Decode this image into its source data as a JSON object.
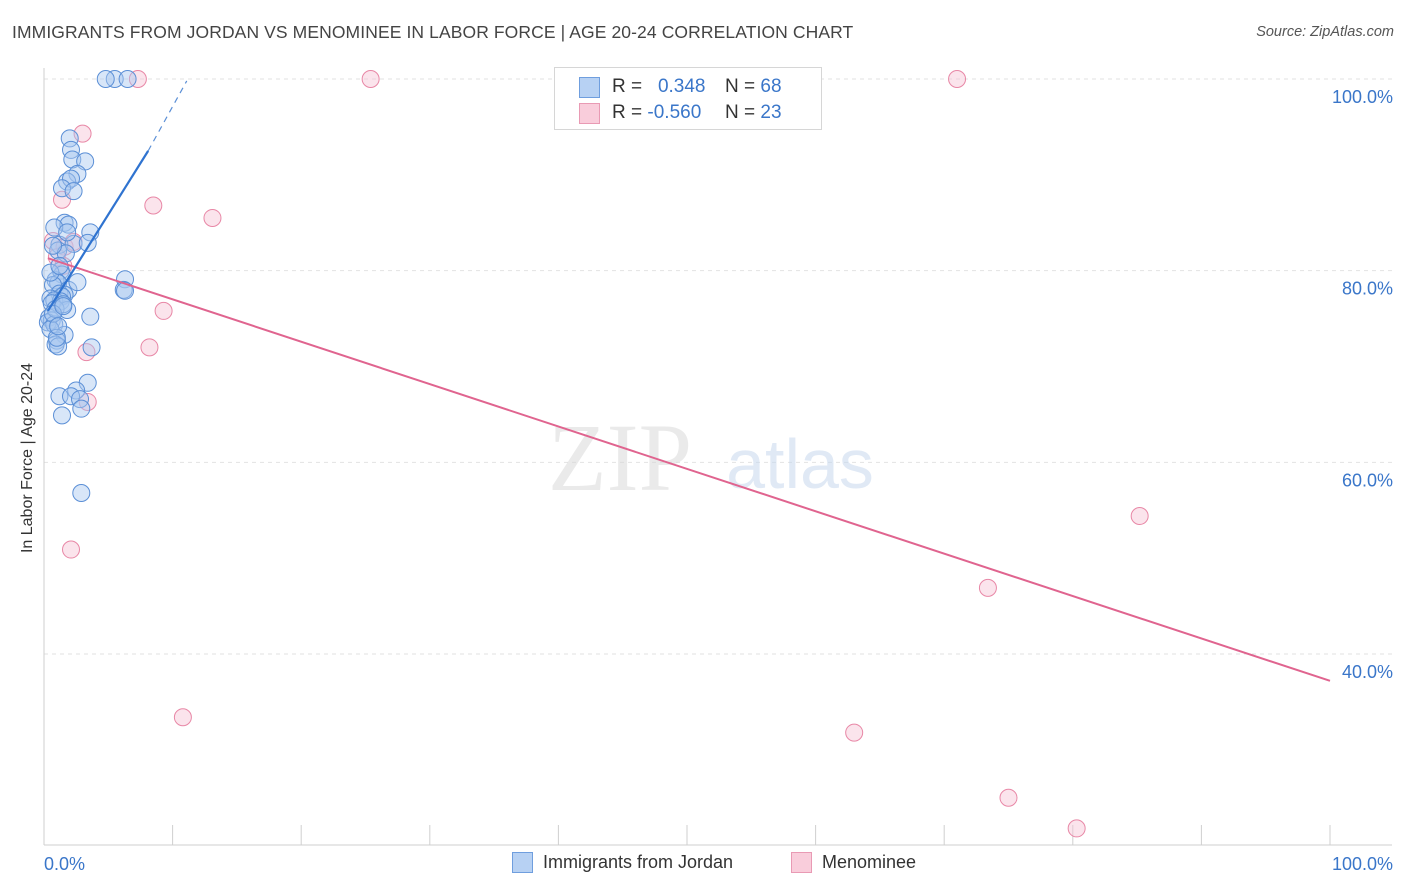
{
  "header": {
    "title": "IMMIGRANTS FROM JORDAN VS MENOMINEE IN LABOR FORCE | AGE 20-24 CORRELATION CHART",
    "source": "Source: ZipAtlas.com"
  },
  "legend": {
    "rows": [
      {
        "r_label": "R =",
        "r_value": "0.348",
        "n_label": "N =",
        "n_value": "68"
      },
      {
        "r_label": "R =",
        "r_value": "-0.560",
        "n_label": "N =",
        "n_value": "23"
      }
    ]
  },
  "watermark": {
    "zip": "ZIP",
    "atlas": "atlas"
  },
  "colors": {
    "blue_fill": "#a9c8f0",
    "blue_stroke": "#5b8fd6",
    "blue_line": "#2f73d0",
    "pink_fill": "#f7c4d4",
    "pink_stroke": "#e887a6",
    "pink_line": "#e0648f",
    "axis_text": "#3a76c9",
    "grid": "#e2e2e2"
  },
  "chart_data": {
    "type": "scatter",
    "title": "IMMIGRANTS FROM JORDAN VS MENOMINEE IN LABOR FORCE | AGE 20-24 CORRELATION CHART",
    "xlabel": "",
    "ylabel": "In Labor Force | Age 20-24",
    "xlim": [
      0,
      100
    ],
    "ylim": [
      21,
      101
    ],
    "x_tick_labels": [
      "0.0%",
      "100.0%"
    ],
    "y_ticks": [
      {
        "value": 100,
        "label": "100.0%"
      },
      {
        "value": 80,
        "label": "80.0%"
      },
      {
        "value": 60,
        "label": "60.0%"
      },
      {
        "value": 40,
        "label": "40.0%"
      }
    ],
    "grid": true,
    "legend_position": "top-center",
    "series": [
      {
        "name": "Immigrants from Jordan",
        "color": "#5b8fd6",
        "R": 0.348,
        "N": 68,
        "trend": {
          "x0": 0.3,
          "y0": 75.8,
          "x1": 8.1,
          "y1": 92.5,
          "dash_x1": 11.1,
          "dash_y1": 99.8
        },
        "points": [
          [
            5.5,
            100
          ],
          [
            6.5,
            100
          ],
          [
            4.8,
            100
          ],
          [
            2.0,
            93.8
          ],
          [
            2.1,
            92.6
          ],
          [
            2.2,
            91.6
          ],
          [
            3.2,
            91.4
          ],
          [
            2.6,
            90.1
          ],
          [
            1.8,
            89.3
          ],
          [
            2.1,
            89.6
          ],
          [
            1.4,
            88.6
          ],
          [
            2.3,
            88.3
          ],
          [
            1.6,
            85.0
          ],
          [
            1.9,
            84.8
          ],
          [
            0.8,
            84.5
          ],
          [
            3.6,
            84.0
          ],
          [
            1.2,
            82.7
          ],
          [
            2.3,
            82.8
          ],
          [
            3.4,
            82.9
          ],
          [
            1.1,
            82.1
          ],
          [
            1.7,
            81.8
          ],
          [
            1.3,
            80.0
          ],
          [
            1.4,
            79.6
          ],
          [
            6.3,
            79.1
          ],
          [
            0.9,
            79.0
          ],
          [
            1.1,
            78.7
          ],
          [
            0.7,
            78.5
          ],
          [
            1.9,
            78.0
          ],
          [
            6.2,
            78.0
          ],
          [
            6.3,
            77.9
          ],
          [
            1.2,
            77.6
          ],
          [
            1.6,
            77.5
          ],
          [
            1.4,
            77.3
          ],
          [
            0.5,
            77.1
          ],
          [
            0.8,
            76.9
          ],
          [
            1.3,
            76.8
          ],
          [
            0.6,
            76.6
          ],
          [
            1.8,
            75.9
          ],
          [
            3.6,
            75.2
          ],
          [
            0.4,
            75.1
          ],
          [
            0.6,
            74.8
          ],
          [
            0.3,
            74.6
          ],
          [
            0.8,
            74.4
          ],
          [
            0.5,
            73.9
          ],
          [
            1.6,
            73.3
          ],
          [
            1.0,
            72.7
          ],
          [
            0.9,
            72.3
          ],
          [
            1.1,
            72.1
          ],
          [
            3.7,
            72.0
          ],
          [
            3.4,
            68.3
          ],
          [
            2.5,
            67.5
          ],
          [
            1.2,
            66.9
          ],
          [
            2.1,
            66.9
          ],
          [
            2.8,
            66.6
          ],
          [
            2.9,
            65.6
          ],
          [
            1.4,
            64.9
          ],
          [
            2.9,
            56.8
          ],
          [
            0.9,
            76.0
          ],
          [
            1.5,
            76.5
          ],
          [
            0.7,
            75.5
          ],
          [
            1.0,
            73.0
          ],
          [
            2.6,
            78.8
          ],
          [
            0.5,
            79.8
          ],
          [
            1.2,
            80.5
          ],
          [
            1.8,
            84.0
          ],
          [
            0.7,
            82.6
          ],
          [
            1.5,
            76.3
          ],
          [
            1.1,
            74.2
          ]
        ]
      },
      {
        "name": "Menominee",
        "color": "#e887a6",
        "R": -0.56,
        "N": 23,
        "trend": {
          "x0": 0.3,
          "y0": 81.3,
          "x1": 100,
          "y1": 37.2
        },
        "points": [
          [
            7.3,
            100
          ],
          [
            25.4,
            100
          ],
          [
            71.0,
            100
          ],
          [
            3.0,
            94.3
          ],
          [
            1.4,
            87.4
          ],
          [
            8.5,
            86.8
          ],
          [
            13.1,
            85.5
          ],
          [
            0.7,
            83.1
          ],
          [
            1.6,
            82.5
          ],
          [
            2.3,
            83.0
          ],
          [
            1.0,
            81.4
          ],
          [
            9.3,
            75.8
          ],
          [
            8.2,
            72.0
          ],
          [
            3.3,
            71.5
          ],
          [
            3.4,
            66.3
          ],
          [
            2.1,
            50.9
          ],
          [
            85.2,
            54.4
          ],
          [
            73.4,
            46.9
          ],
          [
            10.8,
            33.4
          ],
          [
            63.0,
            31.8
          ],
          [
            75.0,
            25.0
          ],
          [
            80.3,
            21.8
          ],
          [
            1.5,
            80.5
          ]
        ]
      }
    ]
  }
}
